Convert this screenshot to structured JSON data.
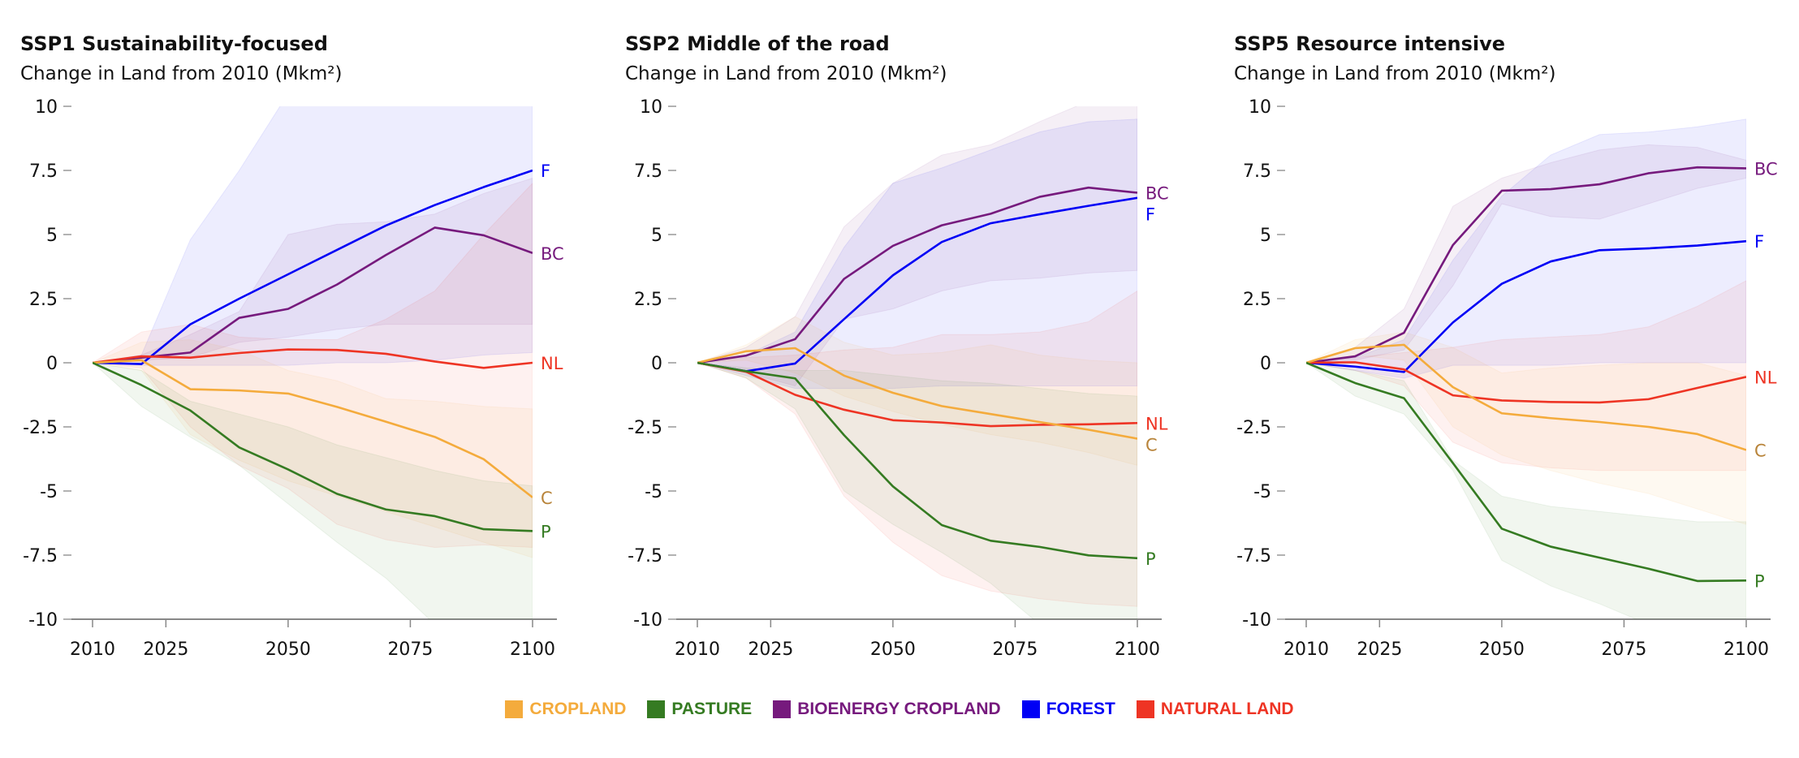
{
  "legend": [
    {
      "key": "cropland",
      "label": "CROPLAND",
      "color": "#f4ab3c"
    },
    {
      "key": "pasture",
      "label": "PASTURE",
      "color": "#357b22"
    },
    {
      "key": "bioenergy",
      "label": "BIOENERGY CROPLAND",
      "color": "#761a7d"
    },
    {
      "key": "forest",
      "label": "FOREST",
      "color": "#0000f5"
    },
    {
      "key": "natural",
      "label": "NATURAL LAND",
      "color": "#ee3424"
    }
  ],
  "chart_data": [
    {
      "type": "line",
      "title": "SSP1 Sustainability-focused",
      "ylabel": "Change in Land from 2010 (Mkm²)",
      "x": [
        2010,
        2020,
        2030,
        2040,
        2050,
        2060,
        2070,
        2080,
        2090,
        2100
      ],
      "xticks": [
        "2010",
        "2025",
        "2050",
        "2075",
        "2100"
      ],
      "yticks": [
        "10",
        "7.5",
        "5",
        "2.5",
        "0",
        "-2.5",
        "-5",
        "-7.5",
        "-10"
      ],
      "ylim": [
        -10,
        10
      ],
      "series": [
        {
          "key": "forest",
          "label": "F",
          "values": [
            0,
            -0.05,
            1.5,
            2.5,
            3.45,
            4.4,
            5.35,
            6.15,
            6.85,
            7.5
          ],
          "upper": [
            0,
            0.3,
            4.8,
            7.5,
            10.5,
            12,
            13,
            14,
            15,
            16
          ],
          "lower": [
            0,
            -0.1,
            -0.1,
            -0.1,
            -0.1,
            0,
            0,
            0.1,
            0.3,
            0.4
          ]
        },
        {
          "key": "bioenergy",
          "label": "BC",
          "values": [
            0,
            0.2,
            0.4,
            1.75,
            2.1,
            3.05,
            4.2,
            5.27,
            4.97,
            4.28
          ],
          "upper": [
            0,
            0.3,
            1.1,
            2.0,
            5.0,
            5.4,
            5.5,
            5.8,
            6.6,
            7.2
          ],
          "lower": [
            0,
            0.1,
            0.2,
            0.8,
            1.0,
            1.3,
            1.5,
            1.5,
            1.5,
            1.5
          ]
        },
        {
          "key": "natural",
          "label": "NL",
          "values": [
            0,
            0.25,
            0.2,
            0.38,
            0.52,
            0.5,
            0.35,
            0.05,
            -0.2,
            0
          ],
          "upper": [
            0,
            1.2,
            1.5,
            1.0,
            0.9,
            0.9,
            1.7,
            2.8,
            5.0,
            7.0
          ],
          "lower": [
            0,
            -0.2,
            -2.5,
            -4.0,
            -4.9,
            -6.3,
            -6.9,
            -7.2,
            -7.1,
            -7.2
          ]
        },
        {
          "key": "cropland",
          "label": "C",
          "values": [
            0,
            0.1,
            -1.03,
            -1.08,
            -1.2,
            -1.72,
            -2.3,
            -2.89,
            -3.76,
            -5.25
          ],
          "upper": [
            0,
            0.8,
            0.9,
            0.5,
            -0.3,
            -0.7,
            -1.4,
            -1.5,
            -1.7,
            -1.8
          ],
          "lower": [
            0,
            -0.3,
            -2.8,
            -3.8,
            -4.6,
            -5.2,
            -5.8,
            -6.4,
            -7.0,
            -7.6
          ]
        },
        {
          "key": "pasture",
          "label": "P",
          "values": [
            0,
            -0.87,
            -1.86,
            -3.3,
            -4.16,
            -5.11,
            -5.72,
            -5.98,
            -6.49,
            -6.56
          ],
          "upper": [
            0,
            -0.3,
            -1.5,
            -2.0,
            -2.5,
            -3.2,
            -3.7,
            -4.2,
            -4.6,
            -4.8
          ],
          "lower": [
            0,
            -1.7,
            -2.9,
            -4.0,
            -5.5,
            -7.0,
            -8.4,
            -10.2,
            -11,
            -12
          ]
        }
      ]
    },
    {
      "type": "line",
      "title": "SSP2 Middle of the road",
      "ylabel": "Change in Land from 2010 (Mkm²)",
      "x": [
        2010,
        2020,
        2030,
        2040,
        2050,
        2060,
        2070,
        2080,
        2090,
        2100
      ],
      "xticks": [
        "2010",
        "2025",
        "2050",
        "2075",
        "2100"
      ],
      "yticks": [
        "10",
        "7.5",
        "5",
        "2.5",
        "0",
        "-2.5",
        "-5",
        "-7.5",
        "-10"
      ],
      "ylim": [
        -10,
        10
      ],
      "series": [
        {
          "key": "forest",
          "label": "F",
          "values": [
            0,
            -0.33,
            -0.03,
            1.7,
            3.41,
            4.71,
            5.44,
            5.79,
            6.12,
            6.43
          ],
          "upper": [
            0,
            0.3,
            1.2,
            4.5,
            7.0,
            7.6,
            8.3,
            9.0,
            9.4,
            9.5
          ],
          "lower": [
            0,
            -0.5,
            -1.0,
            -1.0,
            -1.0,
            -0.9,
            -0.9,
            -0.9,
            -0.9,
            -0.9
          ]
        },
        {
          "key": "bioenergy",
          "label": "BC",
          "values": [
            0,
            0.28,
            0.92,
            3.27,
            4.56,
            5.36,
            5.81,
            6.47,
            6.83,
            6.63
          ],
          "upper": [
            0,
            0.6,
            1.8,
            5.3,
            7.0,
            8.1,
            8.5,
            9.4,
            10.2,
            10.5
          ],
          "lower": [
            0,
            -0.4,
            -0.9,
            1.7,
            2.1,
            2.8,
            3.2,
            3.3,
            3.5,
            3.6
          ]
        },
        {
          "key": "natural",
          "label": "NL",
          "values": [
            0,
            -0.35,
            -1.25,
            -1.83,
            -2.24,
            -2.33,
            -2.47,
            -2.42,
            -2.4,
            -2.35
          ],
          "upper": [
            0,
            0.2,
            0.3,
            0.5,
            0.6,
            1.1,
            1.1,
            1.2,
            1.6,
            2.8
          ],
          "lower": [
            0,
            -0.6,
            -2.0,
            -5.2,
            -7.0,
            -8.3,
            -8.9,
            -9.2,
            -9.4,
            -9.5
          ]
        },
        {
          "key": "cropland",
          "label": "C",
          "values": [
            0,
            0.45,
            0.57,
            -0.5,
            -1.17,
            -1.69,
            -2.0,
            -2.31,
            -2.61,
            -2.96
          ],
          "upper": [
            0,
            0.7,
            1.8,
            0.8,
            0.3,
            0.4,
            0.7,
            0.3,
            0.1,
            0.0
          ],
          "lower": [
            0,
            0.1,
            -0.4,
            -1.3,
            -1.9,
            -2.4,
            -2.8,
            -3.1,
            -3.5,
            -4.0
          ]
        },
        {
          "key": "pasture",
          "label": "P",
          "values": [
            0,
            -0.33,
            -0.61,
            -2.82,
            -4.82,
            -6.33,
            -6.94,
            -7.18,
            -7.51,
            -7.62
          ],
          "upper": [
            0,
            -0.2,
            -0.3,
            -0.3,
            -0.5,
            -0.7,
            -0.8,
            -1.0,
            -1.2,
            -1.3
          ],
          "lower": [
            0,
            -0.6,
            -1.8,
            -5.0,
            -6.3,
            -7.4,
            -8.6,
            -10.2,
            -11,
            -11.5
          ]
        }
      ]
    },
    {
      "type": "line",
      "title": "SSP5 Resource intensive",
      "ylabel": "Change in Land from 2010 (Mkm²)",
      "x": [
        2010,
        2020,
        2030,
        2040,
        2050,
        2060,
        2070,
        2080,
        2090,
        2100
      ],
      "xticks": [
        "2010",
        "2025",
        "2050",
        "2075",
        "2100"
      ],
      "yticks": [
        "10",
        "7.5",
        "5",
        "2.5",
        "0",
        "-2.5",
        "-5",
        "-7.5",
        "-10"
      ],
      "ylim": [
        -10,
        10
      ],
      "series": [
        {
          "key": "forest",
          "label": "F",
          "values": [
            0,
            -0.15,
            -0.36,
            1.57,
            3.08,
            3.95,
            4.39,
            4.46,
            4.57,
            4.74
          ],
          "upper": [
            0,
            0.2,
            0.9,
            4.0,
            6.5,
            8.1,
            8.9,
            9.0,
            9.2,
            9.5
          ],
          "lower": [
            0,
            -0.3,
            -0.6,
            -0.1,
            -0.1,
            -0.1,
            0,
            0,
            0,
            0
          ]
        },
        {
          "key": "bioenergy",
          "label": "BC",
          "values": [
            0,
            0.25,
            1.17,
            4.59,
            6.71,
            6.77,
            6.96,
            7.39,
            7.62,
            7.58
          ],
          "upper": [
            0,
            0.6,
            2.1,
            6.1,
            7.2,
            7.8,
            8.3,
            8.5,
            8.4,
            7.9
          ],
          "lower": [
            0,
            0.1,
            0.5,
            3.0,
            6.2,
            5.7,
            5.6,
            6.2,
            6.8,
            7.2
          ]
        },
        {
          "key": "natural",
          "label": "NL",
          "values": [
            0,
            0.02,
            -0.26,
            -1.27,
            -1.47,
            -1.53,
            -1.55,
            -1.42,
            -0.98,
            -0.55
          ],
          "upper": [
            0,
            0.2,
            0.4,
            0.6,
            0.9,
            1.0,
            1.1,
            1.4,
            2.2,
            3.2
          ],
          "lower": [
            0,
            -0.3,
            -0.9,
            -3.1,
            -3.9,
            -4.1,
            -4.2,
            -4.2,
            -4.2,
            -4.2
          ]
        },
        {
          "key": "cropland",
          "label": "C",
          "values": [
            0,
            0.57,
            0.7,
            -0.95,
            -1.97,
            -2.16,
            -2.31,
            -2.5,
            -2.78,
            -3.4
          ],
          "upper": [
            0,
            0.9,
            1.2,
            0.6,
            -0.4,
            -0.2,
            -0.1,
            0,
            0,
            -0.5
          ],
          "lower": [
            0,
            0.3,
            0.1,
            -2.5,
            -3.6,
            -4.2,
            -4.7,
            -5.1,
            -5.7,
            -6.3
          ]
        },
        {
          "key": "pasture",
          "label": "P",
          "values": [
            0,
            -0.79,
            -1.38,
            -3.91,
            -6.47,
            -7.17,
            -7.6,
            -8.03,
            -8.51,
            -8.49
          ],
          "upper": [
            0,
            -0.3,
            -0.7,
            -3.8,
            -5.2,
            -5.6,
            -5.8,
            -6.0,
            -6.2,
            -6.2
          ],
          "lower": [
            0,
            -1.3,
            -2.0,
            -4.2,
            -7.7,
            -8.7,
            -9.4,
            -10.2,
            -10.5,
            -10.6
          ]
        }
      ]
    }
  ]
}
